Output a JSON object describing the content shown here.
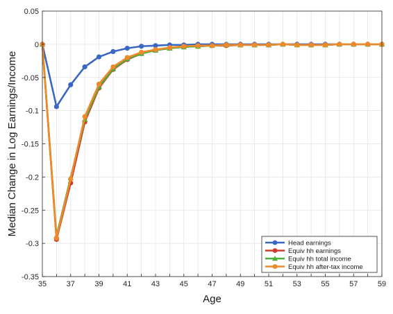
{
  "chart_data": {
    "type": "line",
    "title": "",
    "xlabel": "Age",
    "ylabel": "Median Change in Log Earnings/Income",
    "xlim": [
      35,
      59
    ],
    "ylim": [
      -0.35,
      0.05
    ],
    "x_ticks": [
      35,
      37,
      39,
      41,
      43,
      45,
      47,
      49,
      51,
      53,
      55,
      57,
      59
    ],
    "y_ticks": [
      0.05,
      0,
      -0.05,
      -0.1,
      -0.15,
      -0.2,
      -0.25,
      -0.3,
      -0.35
    ],
    "y_tick_labels": [
      "0.05",
      "0",
      "-0.05",
      "-0.1",
      "-0.15",
      "-0.2",
      "-0.25",
      "-0.3",
      "-0.35"
    ],
    "grid": true,
    "legend_position": "bottom-right",
    "x": [
      35,
      36,
      37,
      38,
      39,
      40,
      41,
      42,
      43,
      44,
      45,
      46,
      47,
      48,
      49,
      50,
      51,
      52,
      53,
      54,
      55,
      56,
      57,
      58,
      59
    ],
    "series": [
      {
        "name": "Head earnings",
        "color": "#3a66c4",
        "marker": "circle",
        "values": [
          0,
          -0.094,
          -0.061,
          -0.034,
          -0.019,
          -0.011,
          -0.006,
          -0.003,
          -0.002,
          -0.001,
          -0.001,
          0,
          0,
          0,
          0,
          0,
          0,
          0,
          0,
          0,
          0,
          0,
          0,
          0,
          0
        ]
      },
      {
        "name": "Equiv hh earnings",
        "color": "#d03a2b",
        "marker": "circle",
        "values": [
          0,
          -0.294,
          -0.209,
          -0.117,
          -0.066,
          -0.038,
          -0.023,
          -0.014,
          -0.009,
          -0.006,
          -0.004,
          -0.003,
          -0.002,
          -0.002,
          -0.001,
          -0.001,
          -0.001,
          0,
          -0.001,
          -0.001,
          -0.001,
          0,
          0,
          0,
          0
        ]
      },
      {
        "name": "Equiv hh total income",
        "color": "#4caf3a",
        "marker": "triangle",
        "values": [
          0,
          -0.289,
          -0.201,
          -0.113,
          -0.064,
          -0.037,
          -0.022,
          -0.014,
          -0.009,
          -0.006,
          -0.004,
          -0.003,
          -0.002,
          -0.001,
          -0.001,
          -0.001,
          -0.001,
          0,
          -0.001,
          -0.001,
          -0.001,
          0,
          0,
          0,
          0
        ]
      },
      {
        "name": "Equiv hh after-tax income",
        "color": "#ee8a2a",
        "marker": "circle",
        "values": [
          0,
          -0.292,
          -0.203,
          -0.109,
          -0.06,
          -0.034,
          -0.02,
          -0.012,
          -0.008,
          -0.005,
          -0.003,
          -0.002,
          -0.002,
          -0.001,
          -0.001,
          -0.001,
          -0.001,
          0,
          -0.001,
          -0.001,
          -0.001,
          0,
          0,
          0,
          0
        ]
      }
    ]
  }
}
